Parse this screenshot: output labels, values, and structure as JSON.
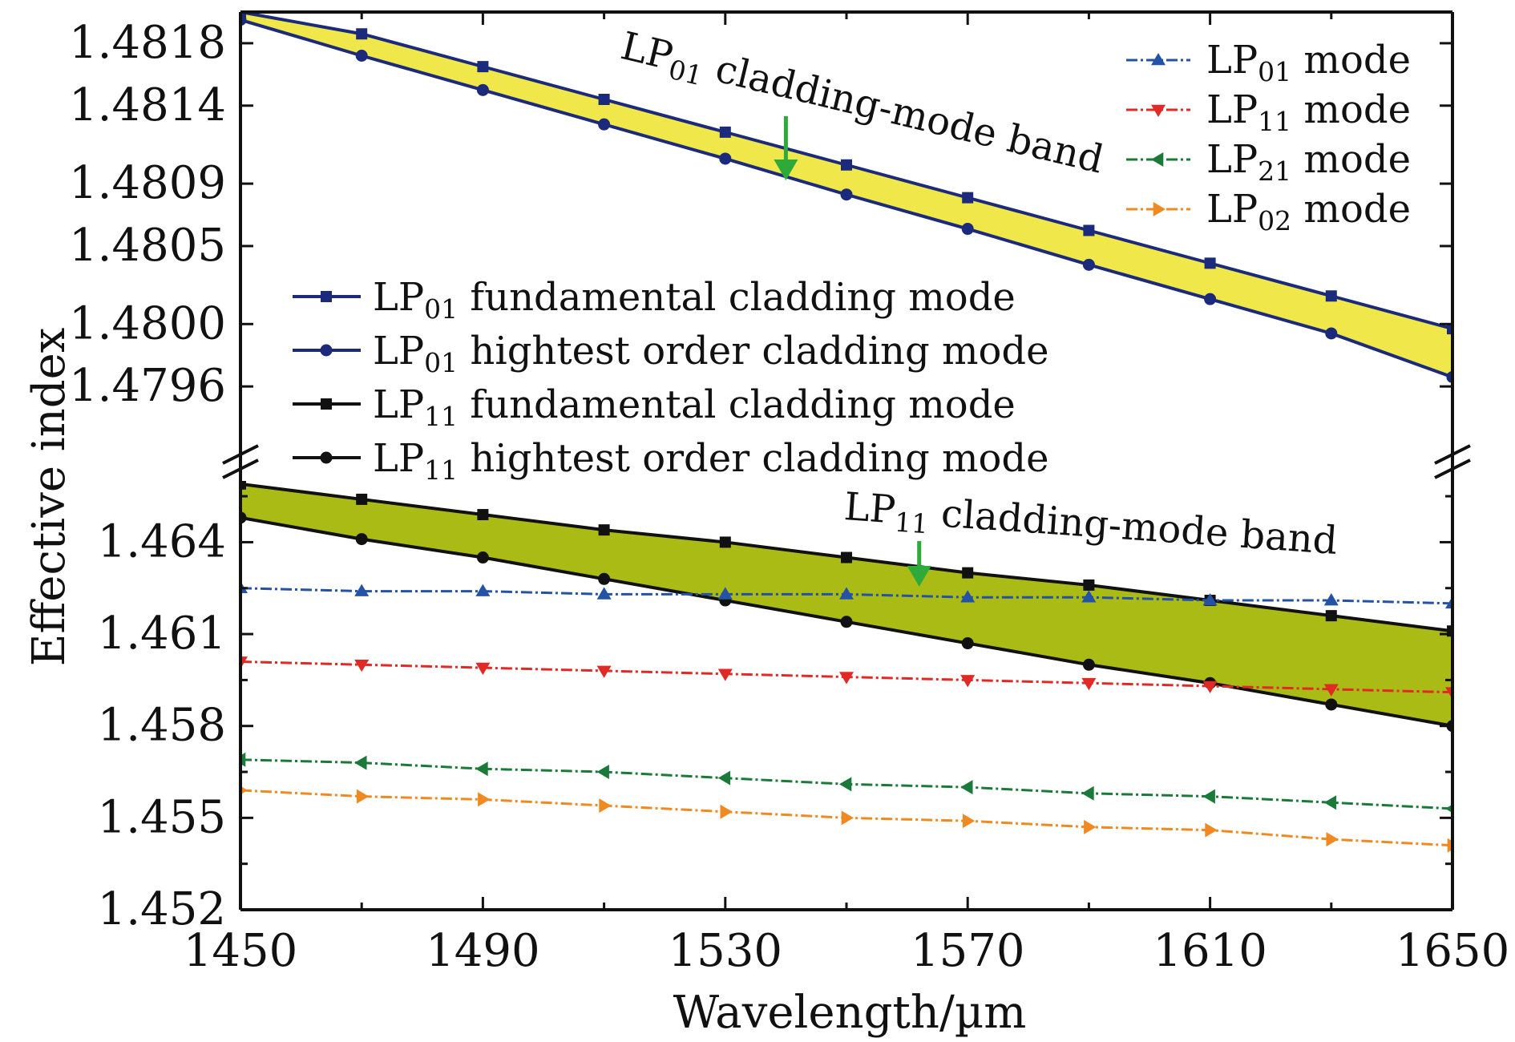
{
  "chart_data": {
    "type": "line",
    "title": "",
    "xlabel": "Wavelength/µm",
    "ylabel": "Effective index",
    "xlim": [
      1450,
      1650
    ],
    "x_ticks": [
      "1450",
      "1490",
      "1530",
      "1570",
      "1610",
      "1650"
    ],
    "broken_y_axis": true,
    "upper_panel": {
      "ylim": [
        1.4792,
        1.482
      ],
      "y_ticks": [
        "1.4818",
        "1.4814",
        "1.4809",
        "1.4805",
        "1.4800",
        "1.4796"
      ],
      "y_tick_values": [
        1.4818,
        1.4814,
        1.4809,
        1.4805,
        1.48,
        1.4796
      ]
    },
    "lower_panel": {
      "ylim": [
        1.452,
        1.466
      ],
      "y_ticks": [
        "1.464",
        "1.461",
        "1.458",
        "1.455",
        "1.452"
      ],
      "y_tick_values": [
        1.464,
        1.461,
        1.458,
        1.455,
        1.452
      ]
    },
    "x": [
      1450,
      1470,
      1490,
      1510,
      1530,
      1550,
      1570,
      1590,
      1610,
      1630,
      1650
    ],
    "series": [
      {
        "name": "LP",
        "sub": "01",
        "suffix": " fundamental cladding mode",
        "panel": "upper",
        "marker": "square",
        "color": "#1b2a7a",
        "values": [
          1.482,
          1.48186,
          1.48165,
          1.48144,
          1.48123,
          1.48102,
          1.48081,
          1.4806,
          1.48039,
          1.48018,
          1.47997
        ]
      },
      {
        "name": "LP",
        "sub": "01",
        "suffix": " hightest order cladding mode",
        "panel": "upper",
        "marker": "circle",
        "color": "#1b2a7a",
        "values": [
          1.48195,
          1.48172,
          1.4815,
          1.48128,
          1.48106,
          1.48083,
          1.48061,
          1.48038,
          1.48016,
          1.47994,
          1.47966
        ]
      },
      {
        "name": "LP",
        "sub": "11",
        "suffix": " fundamental cladding mode",
        "panel": "lower",
        "marker": "square",
        "color": "#111111",
        "values": [
          1.4659,
          1.4654,
          1.4649,
          1.4644,
          1.464,
          1.4635,
          1.463,
          1.4626,
          1.4621,
          1.4616,
          1.4611
        ]
      },
      {
        "name": "LP",
        "sub": "11",
        "suffix": " hightest order cladding mode",
        "panel": "lower",
        "marker": "circle",
        "color": "#111111",
        "values": [
          1.4648,
          1.4641,
          1.4635,
          1.4628,
          1.4621,
          1.4614,
          1.4607,
          1.46,
          1.4594,
          1.4587,
          1.458
        ]
      },
      {
        "name": "LP",
        "sub": "01",
        "suffix": " mode",
        "panel": "lower",
        "marker": "triangle-up",
        "color": "#2452a5",
        "values": [
          1.4625,
          1.4624,
          1.4624,
          1.4623,
          1.4623,
          1.4623,
          1.4622,
          1.4622,
          1.4621,
          1.4621,
          1.462
        ]
      },
      {
        "name": "LP",
        "sub": "11",
        "suffix": " mode",
        "panel": "lower",
        "marker": "triangle-down",
        "color": "#e02a25",
        "values": [
          1.4601,
          1.46,
          1.4599,
          1.4598,
          1.4597,
          1.4596,
          1.4595,
          1.4594,
          1.4593,
          1.4592,
          1.4591
        ]
      },
      {
        "name": "LP",
        "sub": "21",
        "suffix": " mode",
        "panel": "lower",
        "marker": "triangle-left",
        "color": "#1b7a3a",
        "values": [
          1.4569,
          1.4568,
          1.4566,
          1.4565,
          1.4563,
          1.4561,
          1.456,
          1.4558,
          1.4557,
          1.4555,
          1.4553
        ]
      },
      {
        "name": "LP",
        "sub": "02",
        "suffix": " mode",
        "panel": "lower",
        "marker": "triangle-right",
        "color": "#ef8a22",
        "values": [
          1.4559,
          1.4557,
          1.4556,
          1.4554,
          1.4552,
          1.455,
          1.4549,
          1.4547,
          1.4546,
          1.4543,
          1.4541
        ]
      }
    ],
    "bands": [
      {
        "label": "LP",
        "sub": "01",
        "suffix": " cladding-mode band",
        "between": [
          0,
          1
        ],
        "color": "#f0e84a",
        "arrow_x": 1540
      },
      {
        "label": "LP",
        "sub": "11",
        "suffix": " cladding-mode band",
        "between": [
          2,
          3
        ],
        "color": "#a9bb14",
        "arrow_x": 1562
      }
    ],
    "legends": {
      "upper_right": [
        4,
        5,
        6,
        7
      ],
      "left_middle": [
        0,
        1,
        2,
        3
      ]
    },
    "annotation_arrow_color": "#2eaa3a"
  }
}
